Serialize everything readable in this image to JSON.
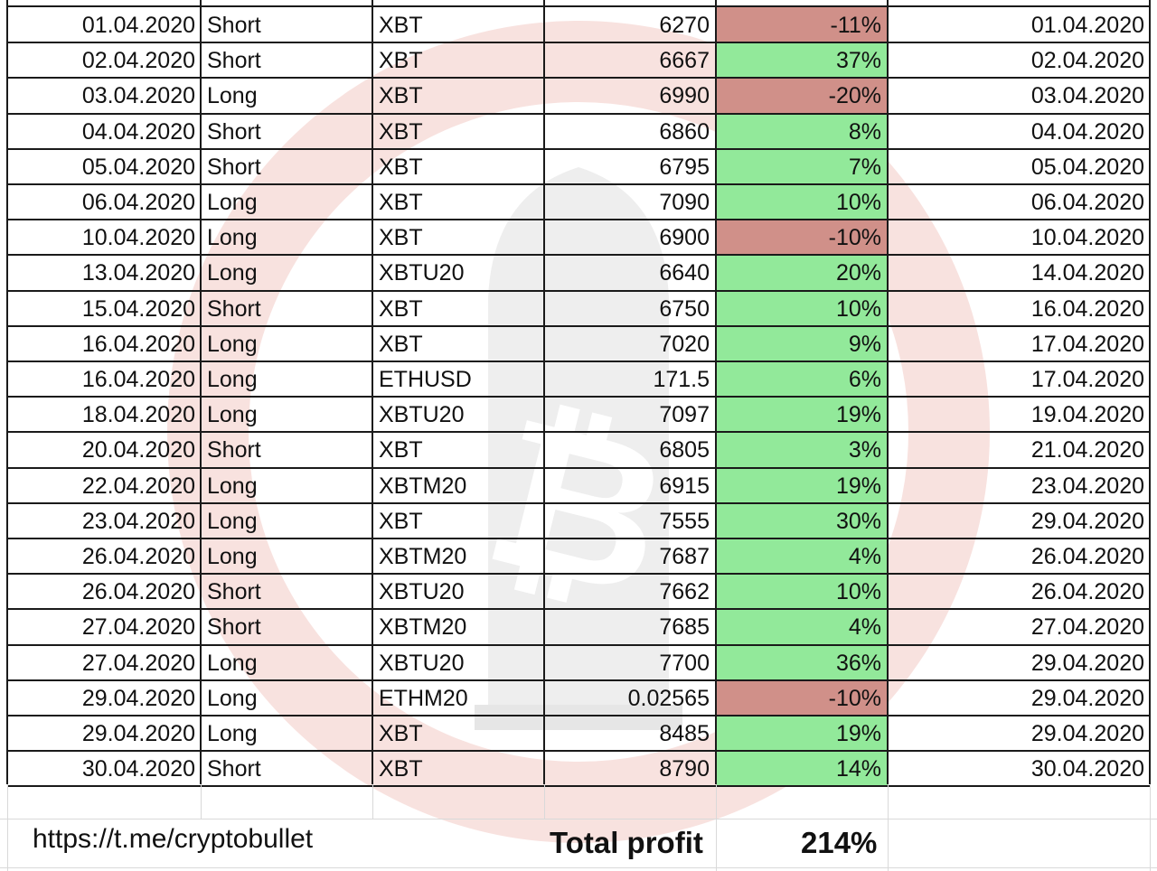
{
  "colors": {
    "profit_bg": "#92e99a",
    "loss_bg": "#d09089",
    "watermark": "#f4d7d3"
  },
  "trades": [
    {
      "date": "01.04.2020",
      "side": "Short",
      "symbol": "XBT",
      "price": "6270",
      "profit": "-11%",
      "exit": "01.04.2020"
    },
    {
      "date": "02.04.2020",
      "side": "Short",
      "symbol": "XBT",
      "price": "6667",
      "profit": "37%",
      "exit": "02.04.2020"
    },
    {
      "date": "03.04.2020",
      "side": "Long",
      "symbol": "XBT",
      "price": "6990",
      "profit": "-20%",
      "exit": "03.04.2020"
    },
    {
      "date": "04.04.2020",
      "side": "Short",
      "symbol": "XBT",
      "price": "6860",
      "profit": "8%",
      "exit": "04.04.2020"
    },
    {
      "date": "05.04.2020",
      "side": "Short",
      "symbol": "XBT",
      "price": "6795",
      "profit": "7%",
      "exit": "05.04.2020"
    },
    {
      "date": "06.04.2020",
      "side": "Long",
      "symbol": "XBT",
      "price": "7090",
      "profit": "10%",
      "exit": "06.04.2020"
    },
    {
      "date": "10.04.2020",
      "side": "Long",
      "symbol": "XBT",
      "price": "6900",
      "profit": "-10%",
      "exit": "10.04.2020"
    },
    {
      "date": "13.04.2020",
      "side": "Long",
      "symbol": "XBTU20",
      "price": "6640",
      "profit": "20%",
      "exit": "14.04.2020"
    },
    {
      "date": "15.04.2020",
      "side": "Short",
      "symbol": "XBT",
      "price": "6750",
      "profit": "10%",
      "exit": "16.04.2020"
    },
    {
      "date": "16.04.2020",
      "side": "Long",
      "symbol": "XBT",
      "price": "7020",
      "profit": "9%",
      "exit": "17.04.2020"
    },
    {
      "date": "16.04.2020",
      "side": "Long",
      "symbol": "ETHUSD",
      "price": "171.5",
      "profit": "6%",
      "exit": "17.04.2020"
    },
    {
      "date": "18.04.2020",
      "side": "Long",
      "symbol": "XBTU20",
      "price": "7097",
      "profit": "19%",
      "exit": "19.04.2020"
    },
    {
      "date": "20.04.2020",
      "side": "Short",
      "symbol": "XBT",
      "price": "6805",
      "profit": "3%",
      "exit": "21.04.2020"
    },
    {
      "date": "22.04.2020",
      "side": "Long",
      "symbol": "XBTM20",
      "price": "6915",
      "profit": "19%",
      "exit": "23.04.2020"
    },
    {
      "date": "23.04.2020",
      "side": "Long",
      "symbol": "XBT",
      "price": "7555",
      "profit": "30%",
      "exit": "29.04.2020"
    },
    {
      "date": "26.04.2020",
      "side": "Long",
      "symbol": "XBTM20",
      "price": "7687",
      "profit": "4%",
      "exit": "26.04.2020"
    },
    {
      "date": "26.04.2020",
      "side": "Short",
      "symbol": "XBTU20",
      "price": "7662",
      "profit": "10%",
      "exit": "26.04.2020"
    },
    {
      "date": "27.04.2020",
      "side": "Short",
      "symbol": "XBTM20",
      "price": "7685",
      "profit": "4%",
      "exit": "27.04.2020"
    },
    {
      "date": "27.04.2020",
      "side": "Long",
      "symbol": "XBTU20",
      "price": "7700",
      "profit": "36%",
      "exit": "29.04.2020"
    },
    {
      "date": "29.04.2020",
      "side": "Long",
      "symbol": "ETHM20",
      "price": "0.02565",
      "profit": "-10%",
      "exit": "29.04.2020"
    },
    {
      "date": "29.04.2020",
      "side": "Long",
      "symbol": "XBT",
      "price": "8485",
      "profit": "19%",
      "exit": "29.04.2020"
    },
    {
      "date": "30.04.2020",
      "side": "Short",
      "symbol": "XBT",
      "price": "8790",
      "profit": "14%",
      "exit": "30.04.2020"
    }
  ],
  "footer": {
    "link": "https://t.me/cryptobullet",
    "total_label": "Total profit",
    "total_value": "214%"
  },
  "watermark": {
    "icon": "bitcoin-bullet-icon"
  }
}
